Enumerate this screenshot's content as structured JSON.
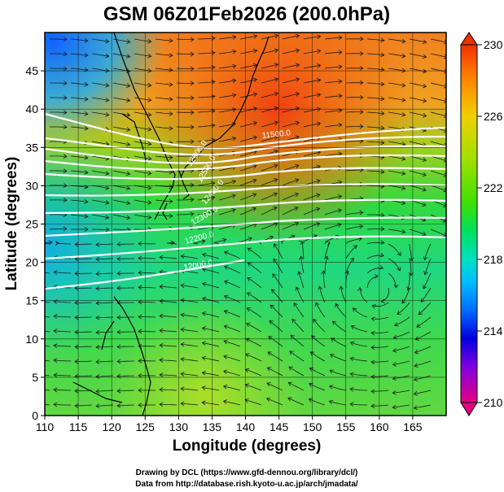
{
  "title": "GSM 06Z01Feb2026 (200.0hPa)",
  "xlabel": "Longitude (degrees)",
  "ylabel": "Latitude  (degrees)",
  "x_ticks": [
    "110",
    "115",
    "120",
    "125",
    "130",
    "135",
    "140",
    "145",
    "150",
    "155",
    "160",
    "165"
  ],
  "y_ticks": [
    "0",
    "5",
    "10",
    "15",
    "20",
    "25",
    "30",
    "35",
    "40",
    "45"
  ],
  "colorbar": {
    "ticks": [
      "230",
      "226",
      "222",
      "218",
      "214",
      "210"
    ],
    "range": [
      210,
      230
    ],
    "colors": [
      "#e60080",
      "#8000e0",
      "#0000e0",
      "#0070ff",
      "#00c0ff",
      "#00e0c0",
      "#00e060",
      "#40e000",
      "#a0e000",
      "#f0d000",
      "#ff8000",
      "#f03000"
    ]
  },
  "contour_labels": [
    "11500.0",
    "12600.0",
    "12500.0",
    "12400.0",
    "12300.0",
    "12200.0",
    "12000.0"
  ],
  "credits": {
    "line1": "Drawing by DCL (https://www.gfd-dennou.org/library/dcl/)",
    "line2": "Data from http://database.rish.kyoto-u.ac.jp/arch/jmadata/"
  },
  "map_data": {
    "type": "meteorological field",
    "variable": "temperature (shaded) with geopotential height contours and wind vectors",
    "level": "200.0hPa",
    "lon_range": [
      110,
      170
    ],
    "lat_range": [
      0,
      50
    ],
    "grid": true,
    "colorbar_position": "right"
  }
}
